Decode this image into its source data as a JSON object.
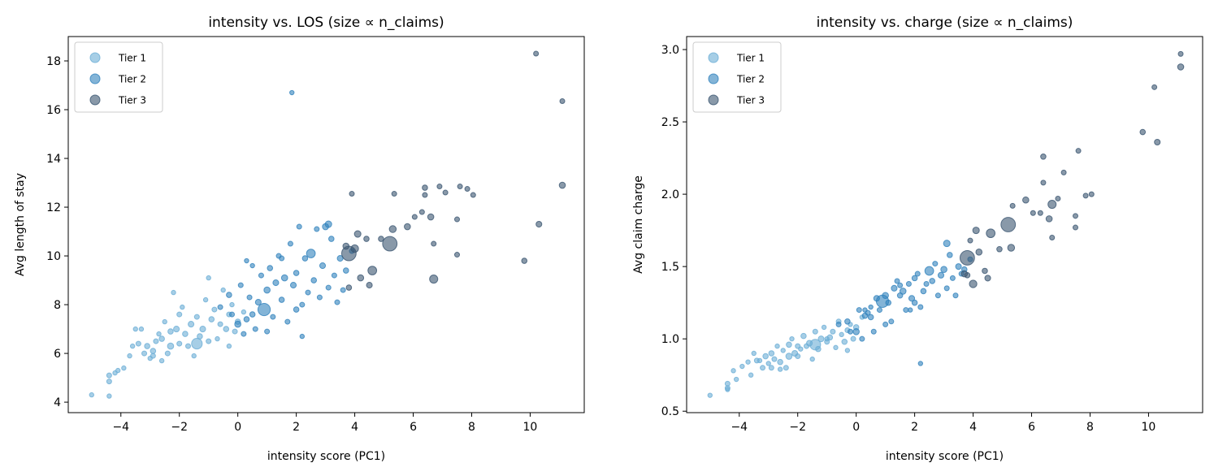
{
  "tier_colors": {
    "Tier 1": "#6baed6",
    "Tier 2": "#3182bd",
    "Tier 3": "#3a5570"
  },
  "points_columns": [
    "intensity_score",
    "avg_los",
    "avg_charge",
    "tier",
    "n_claims"
  ],
  "points": [
    [
      -5.0,
      4.3,
      0.61,
      1,
      20
    ],
    [
      -4.4,
      4.25,
      0.65,
      1,
      20
    ],
    [
      -4.4,
      4.85,
      0.69,
      1,
      25
    ],
    [
      -4.4,
      5.1,
      0.66,
      1,
      25
    ],
    [
      -4.2,
      5.2,
      0.78,
      1,
      20
    ],
    [
      -4.1,
      5.3,
      0.72,
      1,
      20
    ],
    [
      -3.9,
      5.4,
      0.81,
      1,
      20
    ],
    [
      -3.6,
      6.3,
      0.75,
      1,
      20
    ],
    [
      -3.5,
      7.0,
      0.9,
      1,
      20
    ],
    [
      -3.3,
      7.0,
      0.85,
      1,
      20
    ],
    [
      -3.2,
      6.0,
      0.8,
      1,
      25
    ],
    [
      -3.1,
      6.3,
      0.88,
      1,
      30
    ],
    [
      -3.0,
      5.8,
      0.83,
      1,
      20
    ],
    [
      -2.9,
      6.1,
      0.9,
      1,
      30
    ],
    [
      -2.8,
      6.5,
      0.86,
      1,
      25
    ],
    [
      -2.7,
      6.8,
      0.95,
      1,
      20
    ],
    [
      -2.6,
      6.6,
      0.84,
      1,
      30
    ],
    [
      -2.6,
      5.7,
      0.79,
      1,
      20
    ],
    [
      -2.5,
      7.3,
      0.92,
      1,
      20
    ],
    [
      -2.4,
      6.0,
      0.8,
      1,
      25
    ],
    [
      -2.3,
      6.9,
      0.96,
      1,
      30
    ],
    [
      -2.2,
      8.5,
      1.0,
      1,
      20
    ],
    [
      -2.1,
      7.0,
      0.9,
      1,
      35
    ],
    [
      -2.0,
      6.4,
      0.88,
      1,
      25
    ],
    [
      -1.9,
      7.9,
      0.93,
      1,
      20
    ],
    [
      -1.8,
      6.8,
      1.02,
      1,
      30
    ],
    [
      -1.7,
      6.3,
      0.95,
      1,
      25
    ],
    [
      -1.6,
      7.2,
      0.97,
      1,
      35
    ],
    [
      -1.5,
      5.9,
      0.86,
      1,
      20
    ],
    [
      -1.4,
      7.5,
      1.05,
      1,
      25
    ],
    [
      -1.3,
      6.7,
      0.93,
      1,
      30
    ],
    [
      -1.2,
      7.0,
      1.0,
      1,
      35
    ],
    [
      -1.1,
      8.2,
      1.08,
      1,
      20
    ],
    [
      -1.0,
      6.5,
      0.98,
      1,
      25
    ],
    [
      -0.9,
      7.4,
      1.01,
      1,
      30
    ],
    [
      -0.8,
      7.8,
      1.05,
      1,
      25
    ],
    [
      -0.7,
      6.6,
      0.94,
      1,
      20
    ],
    [
      -0.6,
      7.2,
      1.12,
      1,
      25
    ],
    [
      -0.5,
      8.6,
      1.03,
      1,
      20
    ],
    [
      -0.4,
      7.0,
      0.98,
      1,
      30
    ],
    [
      -0.3,
      7.6,
      1.06,
      1,
      25
    ],
    [
      -0.2,
      8.0,
      1.1,
      1,
      20
    ],
    [
      -0.1,
      6.9,
      1.0,
      1,
      25
    ],
    [
      0.0,
      7.3,
      1.08,
      1,
      30
    ],
    [
      0.2,
      7.7,
      1.15,
      1,
      20
    ],
    [
      -1.4,
      6.4,
      0.96,
      1,
      120
    ],
    [
      -2.3,
      6.3,
      0.88,
      1,
      40
    ],
    [
      -3.4,
      6.4,
      0.85,
      1,
      25
    ],
    [
      -2.0,
      7.6,
      0.95,
      1,
      25
    ],
    [
      -1.0,
      9.1,
      1.0,
      1,
      20
    ],
    [
      -0.3,
      6.3,
      0.92,
      1,
      20
    ],
    [
      -2.9,
      5.9,
      0.8,
      1,
      25
    ],
    [
      -3.7,
      5.9,
      0.84,
      1,
      20
    ],
    [
      -0.6,
      7.9,
      1.1,
      2,
      25
    ],
    [
      -0.3,
      8.4,
      1.12,
      2,
      30
    ],
    [
      0.0,
      7.2,
      1.05,
      2,
      40
    ],
    [
      0.1,
      8.8,
      1.2,
      2,
      25
    ],
    [
      0.2,
      6.8,
      1.0,
      2,
      25
    ],
    [
      0.3,
      7.4,
      1.16,
      2,
      30
    ],
    [
      0.4,
      8.3,
      1.18,
      2,
      25
    ],
    [
      0.5,
      9.6,
      1.22,
      2,
      20
    ],
    [
      0.6,
      7.0,
      1.05,
      2,
      25
    ],
    [
      0.7,
      8.1,
      1.28,
      2,
      35
    ],
    [
      0.8,
      9.2,
      1.2,
      2,
      25
    ],
    [
      0.9,
      7.8,
      1.26,
      2,
      160
    ],
    [
      1.0,
      8.6,
      1.3,
      2,
      40
    ],
    [
      1.1,
      9.5,
      1.25,
      2,
      30
    ],
    [
      1.2,
      7.5,
      1.12,
      2,
      25
    ],
    [
      1.3,
      8.9,
      1.35,
      2,
      35
    ],
    [
      1.4,
      10.0,
      1.4,
      2,
      25
    ],
    [
      1.5,
      8.2,
      1.3,
      2,
      30
    ],
    [
      1.6,
      9.1,
      1.33,
      2,
      40
    ],
    [
      1.7,
      7.3,
      1.2,
      2,
      25
    ],
    [
      1.8,
      10.5,
      1.38,
      2,
      25
    ],
    [
      1.9,
      8.8,
      1.28,
      2,
      35
    ],
    [
      1.85,
      16.7,
      1.2,
      2,
      20
    ],
    [
      2.0,
      9.3,
      1.42,
      2,
      30
    ],
    [
      2.1,
      11.2,
      1.45,
      2,
      25
    ],
    [
      2.2,
      8.0,
      1.22,
      2,
      25
    ],
    [
      2.2,
      6.7,
      0.83,
      2,
      20
    ],
    [
      2.3,
      9.9,
      1.33,
      2,
      30
    ],
    [
      2.4,
      8.5,
      1.38,
      2,
      25
    ],
    [
      2.5,
      10.1,
      1.47,
      2,
      80
    ],
    [
      2.6,
      9.0,
      1.4,
      2,
      30
    ],
    [
      2.7,
      11.1,
      1.52,
      2,
      25
    ],
    [
      2.8,
      8.3,
      1.3,
      2,
      25
    ],
    [
      2.9,
      9.6,
      1.44,
      2,
      35
    ],
    [
      3.0,
      11.2,
      1.48,
      2,
      40
    ],
    [
      3.1,
      8.7,
      1.35,
      2,
      25
    ],
    [
      3.2,
      10.7,
      1.58,
      2,
      30
    ],
    [
      3.3,
      9.2,
      1.42,
      2,
      25
    ],
    [
      3.4,
      8.1,
      1.3,
      2,
      25
    ],
    [
      3.5,
      9.9,
      1.5,
      2,
      35
    ],
    [
      3.6,
      8.6,
      1.45,
      2,
      25
    ],
    [
      3.7,
      9.4,
      1.48,
      2,
      30
    ],
    [
      3.9,
      10.2,
      1.55,
      2,
      25
    ],
    [
      1.0,
      6.9,
      1.1,
      2,
      25
    ],
    [
      0.5,
      7.6,
      1.15,
      2,
      30
    ],
    [
      1.5,
      9.9,
      1.37,
      2,
      25
    ],
    [
      2.0,
      7.8,
      1.25,
      2,
      30
    ],
    [
      3.1,
      11.3,
      1.66,
      2,
      45
    ],
    [
      0.3,
      9.8,
      1.2,
      2,
      20
    ],
    [
      -0.2,
      7.6,
      1.05,
      2,
      25
    ],
    [
      3.7,
      10.4,
      1.45,
      3,
      40
    ],
    [
      3.8,
      10.1,
      1.56,
      3,
      220
    ],
    [
      3.8,
      8.7,
      1.44,
      3,
      30
    ],
    [
      3.9,
      12.55,
      1.68,
      3,
      25
    ],
    [
      4.0,
      10.3,
      1.38,
      3,
      60
    ],
    [
      4.1,
      10.9,
      1.75,
      3,
      45
    ],
    [
      4.2,
      9.1,
      1.6,
      3,
      40
    ],
    [
      4.4,
      10.7,
      1.47,
      3,
      30
    ],
    [
      4.5,
      8.8,
      1.42,
      3,
      35
    ],
    [
      4.6,
      9.4,
      1.73,
      3,
      80
    ],
    [
      4.9,
      10.7,
      1.62,
      3,
      30
    ],
    [
      5.2,
      10.5,
      1.79,
      3,
      220
    ],
    [
      5.35,
      12.55,
      1.92,
      3,
      25
    ],
    [
      5.3,
      11.1,
      1.63,
      3,
      50
    ],
    [
      5.8,
      11.2,
      1.96,
      3,
      40
    ],
    [
      6.05,
      11.6,
      1.87,
      3,
      25
    ],
    [
      6.3,
      11.8,
      1.87,
      3,
      25
    ],
    [
      6.4,
      12.8,
      2.26,
      3,
      30
    ],
    [
      6.4,
      12.5,
      2.08,
      3,
      25
    ],
    [
      6.6,
      11.6,
      1.83,
      3,
      40
    ],
    [
      6.7,
      9.05,
      1.93,
      3,
      70
    ],
    [
      6.7,
      10.5,
      1.7,
      3,
      25
    ],
    [
      6.9,
      12.85,
      1.97,
      3,
      25
    ],
    [
      7.1,
      12.6,
      2.15,
      3,
      25
    ],
    [
      7.5,
      11.5,
      1.85,
      3,
      25
    ],
    [
      7.5,
      10.05,
      1.77,
      3,
      25
    ],
    [
      7.6,
      12.85,
      2.3,
      3,
      25
    ],
    [
      7.85,
      12.75,
      1.99,
      3,
      25
    ],
    [
      8.05,
      12.5,
      2.0,
      3,
      25
    ],
    [
      9.8,
      9.8,
      2.43,
      3,
      30
    ],
    [
      10.2,
      18.3,
      2.74,
      3,
      25
    ],
    [
      10.3,
      11.3,
      2.36,
      3,
      35
    ],
    [
      11.1,
      16.35,
      2.97,
      3,
      25
    ],
    [
      11.1,
      12.9,
      2.88,
      3,
      40
    ]
  ],
  "chart_data": [
    {
      "type": "scatter",
      "title": "intensity vs. LOS (size ∝ n_claims)",
      "xlabel": "intensity score (PC1)",
      "ylabel": "Avg length of stay",
      "y_field": "avg_los",
      "xlim": [
        -5.8,
        11.85
      ],
      "ylim": [
        3.57,
        19.0
      ],
      "xticks": [
        -4,
        -2,
        0,
        2,
        4,
        6,
        8,
        10
      ],
      "xtick_labels": [
        "−4",
        "−2",
        "0",
        "2",
        "4",
        "6",
        "8",
        "10"
      ],
      "yticks": [
        4,
        6,
        8,
        10,
        12,
        14,
        16,
        18
      ],
      "ytick_labels": [
        "4",
        "6",
        "8",
        "10",
        "12",
        "14",
        "16",
        "18"
      ],
      "grid": false,
      "legend": {
        "placement": "top-left",
        "entries": [
          "Tier 1",
          "Tier 2",
          "Tier 3"
        ]
      }
    },
    {
      "type": "scatter",
      "title": "intensity vs. charge (size ∝ n_claims)",
      "xlabel": "intensity score (PC1)",
      "ylabel": "Avg claim charge",
      "y_field": "avg_charge",
      "xlim": [
        -5.8,
        11.85
      ],
      "ylim": [
        0.49,
        3.09
      ],
      "xticks": [
        -4,
        -2,
        0,
        2,
        4,
        6,
        8,
        10
      ],
      "xtick_labels": [
        "−4",
        "−2",
        "0",
        "2",
        "4",
        "6",
        "8",
        "10"
      ],
      "yticks": [
        0.5,
        1.0,
        1.5,
        2.0,
        2.5,
        3.0
      ],
      "ytick_labels": [
        "0.5",
        "1.0",
        "1.5",
        "2.0",
        "2.5",
        "3.0"
      ],
      "grid": false,
      "legend": {
        "placement": "top-left",
        "entries": [
          "Tier 1",
          "Tier 2",
          "Tier 3"
        ]
      }
    }
  ]
}
